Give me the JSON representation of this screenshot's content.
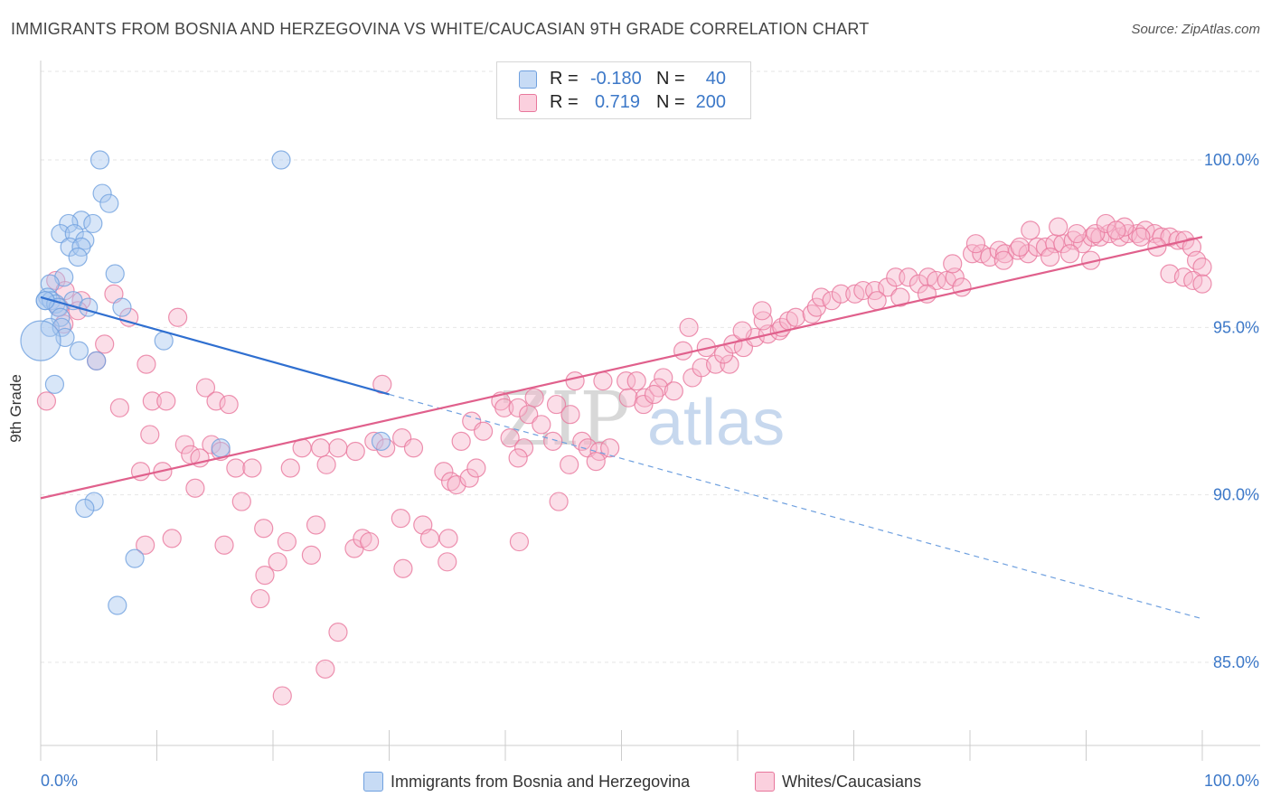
{
  "title": "IMMIGRANTS FROM BOSNIA AND HERZEGOVINA VS WHITE/CAUCASIAN 9TH GRADE CORRELATION CHART",
  "source": "Source: ZipAtlas.com",
  "watermark": {
    "zip": "ZIP",
    "atlas": "atlas"
  },
  "legend": {
    "rows": [
      {
        "r_label": "R =",
        "r_value": "-0.180",
        "n_label": "N =",
        "n_value": "40",
        "color": "#a9c8f0"
      },
      {
        "r_label": "R =",
        "r_value": "0.719",
        "n_label": "N =",
        "n_value": "200",
        "color": "#f6b6cb"
      }
    ]
  },
  "bottom_legend": [
    {
      "label": "Immigrants from Bosnia and Herzegovina",
      "color": "#a9c8f0"
    },
    {
      "label": "Whites/Caucasians",
      "color": "#f6b6cb"
    }
  ],
  "chart_data": {
    "type": "scatter",
    "title": "IMMIGRANTS FROM BOSNIA AND HERZEGOVINA VS WHITE/CAUCASIAN 9TH GRADE CORRELATION CHART",
    "xlabel": "",
    "ylabel": "9th Grade",
    "xlim": [
      0,
      100
    ],
    "ylim": [
      80.0,
      100.7
    ],
    "x_tick_labels": [
      "0.0%",
      "100.0%"
    ],
    "y_ticks": [
      85,
      90,
      95,
      100
    ],
    "y_tick_labels": [
      "85.0%",
      "90.0%",
      "95.0%",
      "100.0%"
    ],
    "grid": true,
    "legend_position": "top-center",
    "series": [
      {
        "name": "Immigrants from Bosnia and Herzegovina",
        "color": "#6fa0df",
        "fill": "#a9c8f0",
        "trend": {
          "x": [
            0,
            30
          ],
          "y": [
            95.9,
            93.0
          ],
          "dashed_to": [
            100,
            86.3
          ]
        },
        "points": [
          [
            5.1,
            100.0
          ],
          [
            20.7,
            100.0
          ],
          [
            5.3,
            99.0
          ],
          [
            5.9,
            98.7
          ],
          [
            3.5,
            98.2
          ],
          [
            4.5,
            98.1
          ],
          [
            2.4,
            98.1
          ],
          [
            1.7,
            97.8
          ],
          [
            2.9,
            97.8
          ],
          [
            3.8,
            97.6
          ],
          [
            2.5,
            97.4
          ],
          [
            3.5,
            97.4
          ],
          [
            3.2,
            97.1
          ],
          [
            6.4,
            96.6
          ],
          [
            2.0,
            96.5
          ],
          [
            0.8,
            96.3
          ],
          [
            0.6,
            95.9
          ],
          [
            0.4,
            95.8
          ],
          [
            0.9,
            95.8
          ],
          [
            1.3,
            95.7
          ],
          [
            2.8,
            95.8
          ],
          [
            1.5,
            95.6
          ],
          [
            7.0,
            95.6
          ],
          [
            4.1,
            95.6
          ],
          [
            1.7,
            95.3
          ],
          [
            0.8,
            95.0
          ],
          [
            1.8,
            95.0
          ],
          [
            2.1,
            94.7
          ],
          [
            10.6,
            94.6
          ],
          [
            0.0,
            94.6
          ],
          [
            3.3,
            94.3
          ],
          [
            4.8,
            94.0
          ],
          [
            1.2,
            93.3
          ],
          [
            29.3,
            91.6
          ],
          [
            15.5,
            91.4
          ],
          [
            4.6,
            89.8
          ],
          [
            3.8,
            89.6
          ],
          [
            8.1,
            88.1
          ],
          [
            6.6,
            86.7
          ],
          [
            0.4,
            95.8
          ]
        ]
      },
      {
        "name": "Whites/Caucasians",
        "color": "#e8779c",
        "fill": "#f6b6cb",
        "trend": {
          "x": [
            0,
            100
          ],
          "y": [
            89.9,
            97.7
          ]
        },
        "points": [
          [
            1.3,
            96.4
          ],
          [
            2.1,
            96.1
          ],
          [
            3.5,
            95.8
          ],
          [
            1.6,
            95.6
          ],
          [
            6.3,
            96.0
          ],
          [
            3.2,
            95.5
          ],
          [
            7.6,
            95.3
          ],
          [
            11.8,
            95.3
          ],
          [
            2.0,
            95.1
          ],
          [
            5.5,
            94.5
          ],
          [
            4.8,
            94.0
          ],
          [
            6.8,
            92.6
          ],
          [
            9.1,
            93.9
          ],
          [
            14.2,
            93.2
          ],
          [
            9.6,
            92.8
          ],
          [
            10.8,
            92.8
          ],
          [
            0.5,
            92.8
          ],
          [
            15.1,
            92.8
          ],
          [
            16.2,
            92.7
          ],
          [
            9.4,
            91.8
          ],
          [
            12.4,
            91.5
          ],
          [
            14.7,
            91.5
          ],
          [
            12.9,
            91.2
          ],
          [
            13.7,
            91.1
          ],
          [
            15.5,
            91.3
          ],
          [
            8.6,
            90.7
          ],
          [
            10.5,
            90.7
          ],
          [
            16.8,
            90.8
          ],
          [
            18.2,
            90.8
          ],
          [
            21.5,
            90.8
          ],
          [
            13.3,
            90.2
          ],
          [
            17.3,
            89.8
          ],
          [
            22.5,
            91.4
          ],
          [
            24.1,
            91.4
          ],
          [
            25.6,
            91.4
          ],
          [
            27.1,
            91.3
          ],
          [
            24.6,
            90.9
          ],
          [
            28.7,
            91.6
          ],
          [
            29.7,
            91.4
          ],
          [
            31.1,
            91.7
          ],
          [
            32.1,
            91.4
          ],
          [
            36.2,
            91.6
          ],
          [
            37.1,
            92.2
          ],
          [
            38.1,
            91.9
          ],
          [
            34.7,
            90.7
          ],
          [
            35.3,
            90.4
          ],
          [
            35.8,
            90.3
          ],
          [
            36.9,
            90.5
          ],
          [
            37.5,
            90.8
          ],
          [
            9.0,
            88.5
          ],
          [
            11.3,
            88.7
          ],
          [
            15.8,
            88.5
          ],
          [
            19.2,
            89.0
          ],
          [
            21.2,
            88.6
          ],
          [
            23.3,
            88.2
          ],
          [
            23.7,
            89.1
          ],
          [
            27.0,
            88.4
          ],
          [
            27.7,
            88.7
          ],
          [
            28.3,
            88.6
          ],
          [
            31.0,
            89.3
          ],
          [
            32.9,
            89.1
          ],
          [
            33.5,
            88.7
          ],
          [
            35.1,
            88.7
          ],
          [
            19.3,
            87.6
          ],
          [
            20.4,
            88.0
          ],
          [
            31.2,
            87.8
          ],
          [
            35.0,
            88.0
          ],
          [
            18.9,
            86.9
          ],
          [
            25.6,
            85.9
          ],
          [
            24.5,
            84.8
          ],
          [
            20.8,
            84.0
          ],
          [
            29.4,
            93.3
          ],
          [
            39.6,
            92.8
          ],
          [
            39.9,
            92.6
          ],
          [
            41.1,
            92.6
          ],
          [
            42.5,
            92.9
          ],
          [
            42.0,
            92.4
          ],
          [
            44.4,
            92.7
          ],
          [
            45.6,
            92.4
          ],
          [
            43.1,
            92.1
          ],
          [
            40.4,
            91.7
          ],
          [
            41.6,
            91.4
          ],
          [
            44.1,
            91.6
          ],
          [
            46.6,
            91.6
          ],
          [
            47.1,
            91.4
          ],
          [
            48.1,
            91.3
          ],
          [
            49.0,
            91.4
          ],
          [
            47.8,
            91.0
          ],
          [
            45.5,
            90.9
          ],
          [
            41.1,
            91.1
          ],
          [
            44.6,
            89.8
          ],
          [
            41.2,
            88.6
          ],
          [
            46.0,
            93.4
          ],
          [
            48.4,
            93.4
          ],
          [
            50.4,
            93.4
          ],
          [
            51.3,
            93.4
          ],
          [
            53.6,
            93.5
          ],
          [
            50.6,
            92.9
          ],
          [
            52.0,
            92.9
          ],
          [
            53.2,
            93.2
          ],
          [
            51.9,
            92.7
          ],
          [
            52.8,
            93.0
          ],
          [
            54.5,
            93.1
          ],
          [
            56.1,
            93.5
          ],
          [
            56.9,
            93.8
          ],
          [
            58.1,
            93.9
          ],
          [
            59.3,
            93.9
          ],
          [
            57.3,
            94.4
          ],
          [
            55.3,
            94.3
          ],
          [
            58.8,
            94.2
          ],
          [
            59.6,
            94.5
          ],
          [
            60.5,
            94.4
          ],
          [
            61.5,
            94.7
          ],
          [
            62.6,
            94.8
          ],
          [
            63.6,
            94.9
          ],
          [
            60.4,
            94.9
          ],
          [
            55.8,
            95.0
          ],
          [
            62.2,
            95.2
          ],
          [
            63.8,
            95.0
          ],
          [
            64.4,
            95.2
          ],
          [
            65.0,
            95.3
          ],
          [
            66.4,
            95.4
          ],
          [
            66.8,
            95.6
          ],
          [
            62.1,
            95.5
          ],
          [
            67.2,
            95.9
          ],
          [
            68.1,
            95.8
          ],
          [
            68.9,
            96.0
          ],
          [
            70.1,
            96.0
          ],
          [
            70.8,
            96.1
          ],
          [
            71.8,
            96.1
          ],
          [
            72.9,
            96.2
          ],
          [
            72.0,
            95.8
          ],
          [
            73.6,
            96.5
          ],
          [
            74.7,
            96.5
          ],
          [
            75.6,
            96.3
          ],
          [
            76.4,
            96.5
          ],
          [
            77.1,
            96.4
          ],
          [
            78.0,
            96.4
          ],
          [
            78.7,
            96.5
          ],
          [
            79.3,
            96.2
          ],
          [
            80.2,
            97.2
          ],
          [
            81.0,
            97.2
          ],
          [
            81.7,
            97.1
          ],
          [
            82.5,
            97.3
          ],
          [
            83.0,
            97.2
          ],
          [
            84.1,
            97.3
          ],
          [
            85.0,
            97.2
          ],
          [
            85.8,
            97.4
          ],
          [
            86.5,
            97.4
          ],
          [
            87.3,
            97.5
          ],
          [
            88.0,
            97.5
          ],
          [
            88.9,
            97.6
          ],
          [
            89.7,
            97.5
          ],
          [
            90.5,
            97.7
          ],
          [
            91.2,
            97.7
          ],
          [
            92.0,
            97.8
          ],
          [
            92.9,
            97.7
          ],
          [
            93.6,
            97.8
          ],
          [
            94.4,
            97.8
          ],
          [
            95.1,
            97.9
          ],
          [
            95.9,
            97.8
          ],
          [
            96.5,
            97.7
          ],
          [
            97.2,
            97.7
          ],
          [
            97.9,
            97.6
          ],
          [
            98.5,
            97.6
          ],
          [
            99.1,
            97.4
          ],
          [
            99.5,
            97.0
          ],
          [
            100.0,
            96.8
          ],
          [
            97.2,
            96.6
          ],
          [
            98.4,
            96.5
          ],
          [
            99.2,
            96.4
          ],
          [
            100.0,
            96.3
          ],
          [
            90.4,
            97.0
          ],
          [
            86.9,
            97.1
          ],
          [
            84.3,
            97.4
          ],
          [
            82.9,
            97.0
          ],
          [
            80.5,
            97.5
          ],
          [
            78.5,
            96.9
          ],
          [
            76.3,
            96.0
          ],
          [
            74.0,
            95.9
          ],
          [
            88.6,
            97.2
          ],
          [
            93.3,
            98.0
          ],
          [
            94.7,
            97.7
          ],
          [
            96.1,
            97.4
          ],
          [
            85.2,
            97.9
          ],
          [
            87.6,
            98.0
          ],
          [
            89.2,
            97.8
          ],
          [
            90.8,
            97.8
          ],
          [
            91.7,
            98.1
          ],
          [
            92.6,
            97.9
          ]
        ]
      }
    ]
  }
}
